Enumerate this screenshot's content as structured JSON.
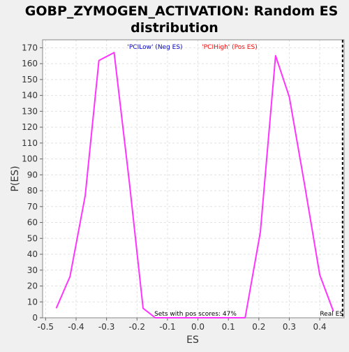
{
  "chart_data": {
    "type": "line",
    "title": "GOBP_ZYMOGEN_ACTIVATION: Random ES distribution",
    "title_lines": [
      "GOBP_ZYMOGEN_ACTIVATION: Random ES",
      "distribution"
    ],
    "xlabel": "ES",
    "ylabel": "P(ES)",
    "xlim": [
      -0.51,
      0.48
    ],
    "ylim": [
      0,
      175
    ],
    "xticks": [
      -0.5,
      -0.4,
      -0.3,
      -0.2,
      -0.1,
      0.0,
      0.1,
      0.2,
      0.3,
      0.4
    ],
    "xtick_labels": [
      "-0.5",
      "-0.4",
      "-0.3",
      "-0.2",
      "-0.1",
      "0.0",
      "0.1",
      "0.2",
      "0.3",
      "0.4"
    ],
    "yticks": [
      0,
      10,
      20,
      30,
      40,
      50,
      60,
      70,
      80,
      90,
      100,
      110,
      120,
      130,
      140,
      150,
      160,
      170
    ],
    "grid": true,
    "series": [
      {
        "color": "#ff33ff",
        "x": [
          -0.465,
          -0.42,
          -0.37,
          -0.325,
          -0.275,
          -0.225,
          -0.18,
          -0.14,
          0.155,
          0.205,
          0.255,
          0.3,
          0.35,
          0.4,
          0.445
        ],
        "y": [
          6,
          26,
          77,
          162,
          167,
          85,
          6,
          0,
          0,
          54,
          165,
          139,
          84,
          27,
          4
        ]
      }
    ],
    "real_es": 0.475,
    "annotations": {
      "neg_label": "'PCILow' (Neg ES)",
      "pos_label": "'PCIHigh' (Pos ES)",
      "sets_label": "Sets with pos scores: 47%",
      "real_es_label": "Real ES"
    },
    "colors": {
      "neg": "#0000cc",
      "pos": "#ff0000",
      "line": "#ff33ff",
      "real_es": "#000000"
    }
  }
}
